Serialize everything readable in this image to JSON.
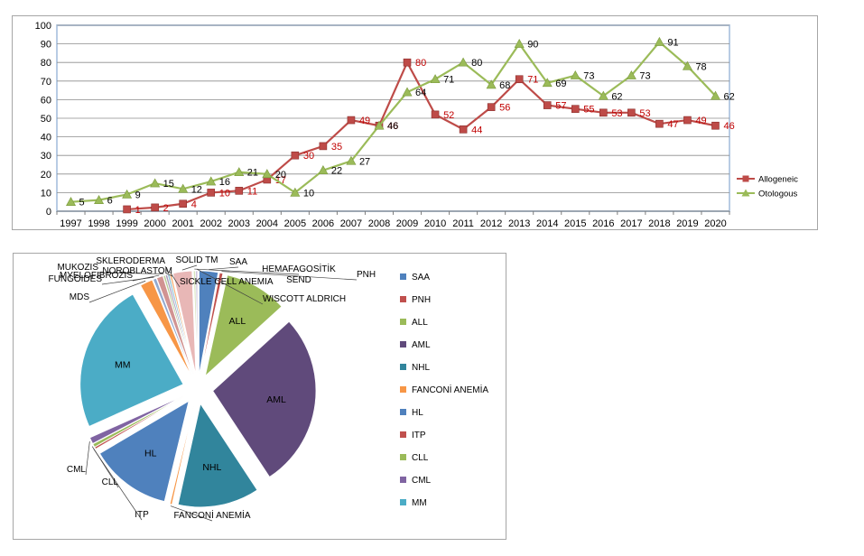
{
  "chart_data": [
    {
      "type": "line",
      "x": [
        "1997",
        "1998",
        "1999",
        "2000",
        "2001",
        "2002",
        "2003",
        "2004",
        "2005",
        "2006",
        "2007",
        "2008",
        "2009",
        "2010",
        "2011",
        "2012",
        "2013",
        "2014",
        "2015",
        "2016",
        "2017",
        "2018",
        "2019",
        "2020"
      ],
      "ylim": [
        0,
        100
      ],
      "yticks": [
        0,
        10,
        20,
        30,
        40,
        50,
        60,
        70,
        80,
        90,
        100
      ],
      "grid": true,
      "legend": "right",
      "series": [
        {
          "name": "Allogeneic",
          "color": "#be4b48",
          "label_color": "#c00000",
          "marker": "square",
          "values": [
            null,
            null,
            1,
            2,
            4,
            10,
            11,
            17,
            30,
            35,
            49,
            46,
            80,
            52,
            44,
            56,
            71,
            57,
            55,
            53,
            53,
            47,
            49,
            46
          ]
        },
        {
          "name": "Otologous",
          "color": "#9bbb59",
          "label_color": "#000000",
          "marker": "triangle",
          "values": [
            5,
            6,
            9,
            15,
            12,
            16,
            21,
            20,
            10,
            22,
            27,
            46,
            64,
            71,
            80,
            68,
            90,
            69,
            73,
            62,
            73,
            91,
            78,
            62
          ]
        }
      ]
    },
    {
      "type": "pie",
      "legend": "right",
      "slices": [
        {
          "label": "SAA",
          "value": 3,
          "color": "#4f81bd"
        },
        {
          "label": "PNH",
          "value": 0.5,
          "color": "#c0504d"
        },
        {
          "label": "ALL",
          "value": 10,
          "color": "#9bbb59"
        },
        {
          "label": "AML",
          "value": 28,
          "color": "#604a7b"
        },
        {
          "label": "NHL",
          "value": 13,
          "color": "#31859c"
        },
        {
          "label": "FANCONİ ANEMİA",
          "value": 0.3,
          "color": "#f79646"
        },
        {
          "label": "HL",
          "value": 13,
          "color": "#4f81bd"
        },
        {
          "label": "ITP",
          "value": 0.3,
          "color": "#c0504d"
        },
        {
          "label": "CLL",
          "value": 0.5,
          "color": "#9bbb59"
        },
        {
          "label": "CML",
          "value": 1,
          "color": "#8064a2"
        },
        {
          "label": "MM",
          "value": 24,
          "color": "#4bacc6"
        },
        {
          "label": "MDS",
          "value": 2,
          "color": "#f79646"
        },
        {
          "label": "FUNGOIDES",
          "value": 0.5,
          "color": "#93a9cf"
        },
        {
          "label": "MYELOFIBROZIS",
          "value": 1,
          "color": "#d19392"
        },
        {
          "label": "MUKOZIS",
          "value": 0.3,
          "color": "#b9cd96"
        },
        {
          "label": "NOROBLASTOM",
          "value": 0.3,
          "color": "#a99bbd"
        },
        {
          "label": "SKLERODERMA",
          "value": 0.3,
          "color": "#92c5d9"
        },
        {
          "label": "SICKLE CELL ANEMIA",
          "value": 0.3,
          "color": "#f9b074"
        },
        {
          "label": "SOLID TM",
          "value": 3,
          "color": "#e8b7b6"
        },
        {
          "label": "HEMAFAGOSİTİK SEND",
          "value": 0.3,
          "color": "#d7e4bd"
        },
        {
          "label": "WISCOTT ALDRICH",
          "value": 0.3,
          "color": "#ccc1da"
        }
      ],
      "legend_items": [
        "SAA",
        "PNH",
        "ALL",
        "AML",
        "NHL",
        "FANCONİ ANEMİA",
        "HL",
        "ITP",
        "CLL",
        "CML",
        "MM"
      ]
    }
  ]
}
